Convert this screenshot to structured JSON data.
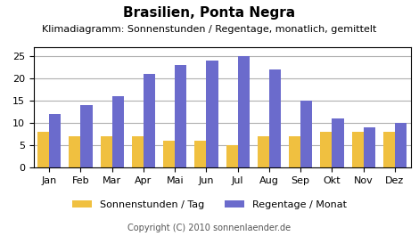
{
  "chart_data": {
    "type": "bar",
    "title": "Brasilien, Ponta Negra",
    "subtitle": "Klimadiagramm: Sonnenstunden / Regentage, monatlich, gemittelt",
    "annotations": [
      "Copyright (C) 2010 sonnenlaender.de"
    ],
    "categories": [
      "Jan",
      "Feb",
      "Mar",
      "Apr",
      "Mai",
      "Jun",
      "Jul",
      "Aug",
      "Sep",
      "Okt",
      "Nov",
      "Dez"
    ],
    "series": [
      {
        "name": "Sonnenstunden / Tag",
        "color": "#f0c040",
        "values": [
          8,
          7,
          7,
          7,
          6,
          6,
          5,
          7,
          7,
          8,
          8,
          8
        ]
      },
      {
        "name": "Regentage / Monat",
        "color": "#6b6bcc",
        "values": [
          12,
          14,
          16,
          21,
          23,
          24,
          25,
          22,
          15,
          11,
          9,
          10
        ]
      }
    ],
    "ylim": [
      0,
      27
    ],
    "yticks": [
      0,
      5,
      10,
      15,
      20,
      25
    ],
    "grid": true,
    "legend": "lower center"
  }
}
